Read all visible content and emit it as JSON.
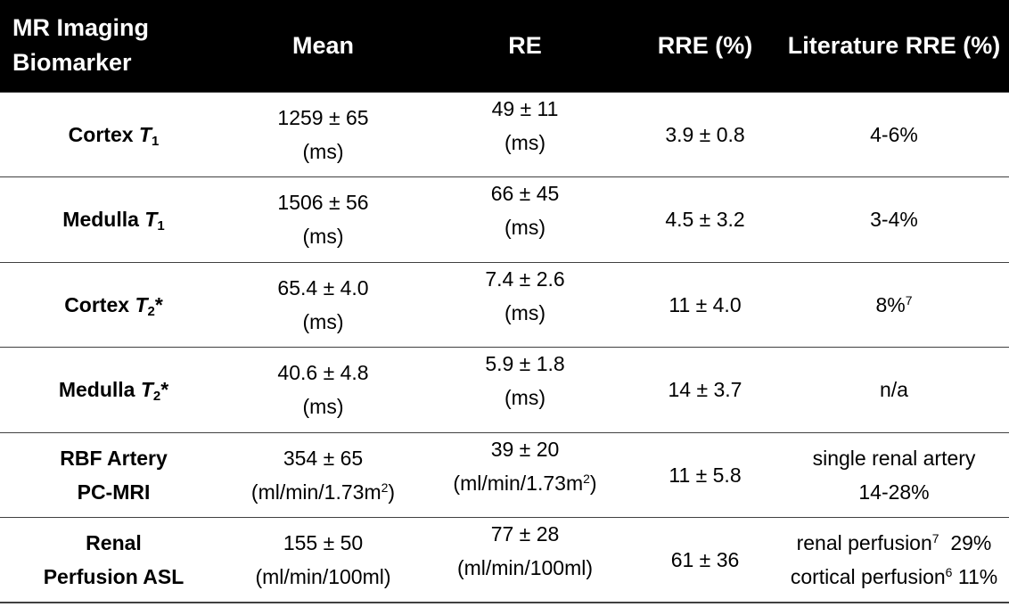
{
  "header": {
    "biomarker": "MR Imaging Biomarker",
    "mean": "Mean",
    "re": "RE",
    "rre": "RRE (%)",
    "literature": "Literature RRE (%)"
  },
  "rows": [
    {
      "name_prefix": "Cortex ",
      "name_var": "T",
      "name_sub": "1",
      "name_suffix": "",
      "mean_value": "1259 ± 65",
      "mean_unit": "(ms)",
      "re_value": "49 ± 11",
      "re_unit": "(ms)",
      "rre": "3.9 ± 0.8",
      "literature": "4-6%"
    },
    {
      "name_prefix": "Medulla ",
      "name_var": "T",
      "name_sub": "1",
      "name_suffix": "",
      "mean_value": "1506 ± 56",
      "mean_unit": "(ms)",
      "re_value": "66 ± 45",
      "re_unit": "(ms)",
      "rre": "4.5 ± 3.2",
      "literature": "3-4%"
    },
    {
      "name_prefix": "Cortex ",
      "name_var": "T",
      "name_sub": "2",
      "name_suffix": "*",
      "mean_value": "65.4 ± 4.0",
      "mean_unit": "(ms)",
      "re_value": "7.4 ± 2.6",
      "re_unit": "(ms)",
      "rre": "11 ± 4.0",
      "literature": "8%",
      "literature_ref": "7"
    },
    {
      "name_prefix": "Medulla ",
      "name_var": "T",
      "name_sub": "2",
      "name_suffix": "*",
      "mean_value": "40.6 ± 4.8",
      "mean_unit": "(ms)",
      "re_value": "5.9 ± 1.8",
      "re_unit": "(ms)",
      "rre": "14 ± 3.7",
      "literature": "n/a"
    },
    {
      "name_line1": "RBF Artery",
      "name_line2": "PC-MRI",
      "mean_value": "354 ± 65",
      "mean_unit": "(ml/min/1.73m",
      "mean_unit_sup": "2",
      "mean_unit_close": ")",
      "re_value": "39 ± 20",
      "re_unit": "(ml/min/1.73m",
      "re_unit_sup": "2",
      "re_unit_close": ")",
      "rre": "11 ± 5.8",
      "literature_line1": "single renal artery",
      "literature_line2": "14-28%"
    },
    {
      "name_line1": "Renal",
      "name_line2": "Perfusion ASL",
      "mean_value": "155 ± 50",
      "mean_unit": "(ml/min/100ml)",
      "re_value": "77 ± 28",
      "re_unit": "(ml/min/100ml)",
      "rre": "61 ± 36",
      "literature_line1_text": "renal perfusion",
      "literature_line1_ref": "7",
      "literature_line1_value": "  29%",
      "literature_line2_text": "cortical perfusion",
      "literature_line2_ref": "6",
      "literature_line2_value": " 11%"
    }
  ]
}
